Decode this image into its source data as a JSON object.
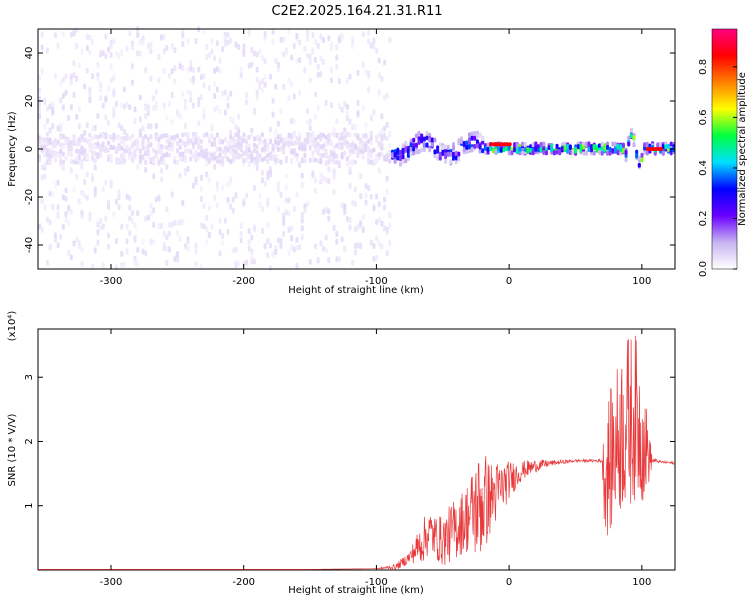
{
  "title": "C2E2.2025.164.21.31.R11",
  "chart_data": [
    {
      "type": "heatmap",
      "title": "C2E2.2025.164.21.31.R11",
      "xlabel": "Height of straight line (km)",
      "ylabel": "Frequency (Hz)",
      "xlim": [
        -355,
        125
      ],
      "ylim": [
        -50,
        50
      ],
      "x_ticks": [
        -300,
        -200,
        -100,
        0,
        100
      ],
      "y_ticks": [
        -40,
        -20,
        0,
        20,
        40
      ],
      "colorbar": {
        "label": "Normalized spectral amplitude",
        "range": [
          0.0,
          0.95
        ],
        "ticks": [
          0.0,
          0.2,
          0.4,
          0.6,
          0.8
        ],
        "colormap": [
          "#ffffff",
          "#c8b4f0",
          "#6a00ff",
          "#0000ff",
          "#00e0ff",
          "#00ff40",
          "#ffff00",
          "#ff8000",
          "#ff0000",
          "#ff0080"
        ]
      },
      "regions": [
        {
          "x": [
            -355,
            -90
          ],
          "description": "broad noisy band",
          "core_half_width_hz": 6,
          "scatter_half_width_hz": 50,
          "typical_amplitude": 0.05
        },
        {
          "x": [
            -90,
            -20
          ],
          "core_half_width_hz": 4,
          "typical_amplitude": 0.3
        },
        {
          "x": [
            -20,
            125
          ],
          "core_half_width_hz": 2,
          "typical_amplitude": 0.5
        },
        {
          "x": [
            -15,
            0
          ],
          "center_hz": 2,
          "typical_amplitude": 0.85
        },
        {
          "x": [
            103,
            115
          ],
          "center_hz": 0,
          "typical_amplitude": 0.85
        }
      ]
    },
    {
      "type": "line",
      "xlabel": "Height of straight line (km)",
      "ylabel": "SNR (10 * V/V)",
      "multiplier_label": "(x10⁴)",
      "xlim": [
        -355,
        125
      ],
      "ylim": [
        0,
        3.75
      ],
      "x_ticks": [
        -300,
        -200,
        -100,
        0,
        100
      ],
      "y_ticks": [
        1,
        2,
        3
      ],
      "color": "#e8383a",
      "series": [
        {
          "x": [
            -355,
            -150,
            -100,
            -85,
            -75,
            -65,
            -60,
            -55,
            -50,
            -45,
            -40,
            -35,
            -30,
            -25,
            -20,
            -15,
            -10,
            -5,
            0,
            10,
            20,
            30,
            40,
            50,
            60,
            70,
            72,
            75,
            80,
            85,
            90,
            95,
            100,
            105,
            108,
            110,
            115,
            120,
            125
          ],
          "y": [
            0.01,
            0.01,
            0.02,
            0.05,
            0.2,
            0.45,
            0.6,
            0.5,
            0.45,
            0.55,
            0.65,
            0.75,
            0.85,
            0.95,
            1.05,
            1.1,
            1.2,
            1.3,
            1.4,
            1.55,
            1.62,
            1.66,
            1.68,
            1.7,
            1.7,
            1.7,
            1.5,
            1.6,
            1.9,
            2.2,
            2.3,
            2.4,
            2.1,
            1.8,
            1.7,
            1.7,
            1.68,
            1.67,
            1.66
          ],
          "spread": [
            0,
            0,
            0,
            0.05,
            0.1,
            0.35,
            0.35,
            0.35,
            0.4,
            0.45,
            0.5,
            0.5,
            0.6,
            0.8,
            0.9,
            0.6,
            0.5,
            0.4,
            0.3,
            0.15,
            0.1,
            0.05,
            0.03,
            0.02,
            0.02,
            0.03,
            0.9,
            1.1,
            1.2,
            1.3,
            1.4,
            1.3,
            1.1,
            0.5,
            0.05,
            0.03,
            0.02,
            0.02,
            0.02
          ]
        }
      ]
    }
  ]
}
